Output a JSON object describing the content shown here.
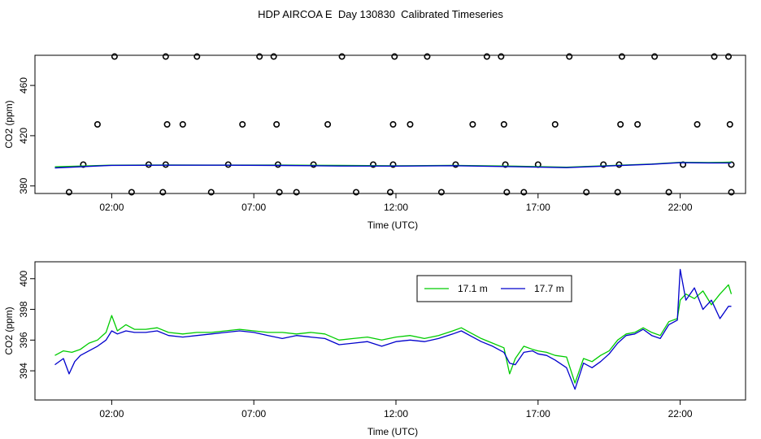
{
  "title": "HDP AIRCOA E  Day 130830  Calibrated Timeseries",
  "chart_data": [
    {
      "type": "scatter+line",
      "xlabel": "Time (UTC)",
      "ylabel": "CO2 (ppm)",
      "x_unit": "hours UTC",
      "xlim": [
        -0.7,
        24.3
      ],
      "ylim": [
        374,
        484
      ],
      "x_ticks": [
        {
          "value": 2,
          "label": "02:00"
        },
        {
          "value": 7,
          "label": "07:00"
        },
        {
          "value": 12,
          "label": "12:00"
        },
        {
          "value": 17,
          "label": "17:00"
        },
        {
          "value": 22,
          "label": "22:00"
        }
      ],
      "y_ticks": [
        {
          "value": 380,
          "label": "380"
        },
        {
          "value": 420,
          "label": "420"
        },
        {
          "value": 460,
          "label": "460"
        }
      ],
      "calibration_points": [
        [
          0.5,
          375
        ],
        [
          1.0,
          397
        ],
        [
          1.5,
          429
        ],
        [
          2.1,
          483
        ],
        [
          2.7,
          375
        ],
        [
          3.3,
          397
        ],
        [
          3.8,
          375
        ],
        [
          3.9,
          397
        ],
        [
          3.95,
          429
        ],
        [
          3.9,
          483
        ],
        [
          4.5,
          429
        ],
        [
          5.0,
          483
        ],
        [
          5.5,
          375
        ],
        [
          6.1,
          397
        ],
        [
          6.6,
          429
        ],
        [
          7.2,
          483
        ],
        [
          7.7,
          483
        ],
        [
          7.8,
          429
        ],
        [
          7.85,
          397
        ],
        [
          7.9,
          375
        ],
        [
          8.5,
          375
        ],
        [
          9.1,
          397
        ],
        [
          9.6,
          429
        ],
        [
          10.1,
          483
        ],
        [
          10.6,
          375
        ],
        [
          11.2,
          397
        ],
        [
          11.8,
          375
        ],
        [
          11.9,
          397
        ],
        [
          11.9,
          429
        ],
        [
          11.95,
          483
        ],
        [
          12.5,
          429
        ],
        [
          13.1,
          483
        ],
        [
          13.6,
          375
        ],
        [
          14.1,
          397
        ],
        [
          14.7,
          429
        ],
        [
          15.2,
          483
        ],
        [
          15.7,
          483
        ],
        [
          15.8,
          429
        ],
        [
          15.85,
          397
        ],
        [
          15.9,
          375
        ],
        [
          16.5,
          375
        ],
        [
          17.0,
          397
        ],
        [
          17.6,
          429
        ],
        [
          18.1,
          483
        ],
        [
          18.7,
          375
        ],
        [
          19.3,
          397
        ],
        [
          19.8,
          375
        ],
        [
          19.85,
          397
        ],
        [
          19.9,
          429
        ],
        [
          19.95,
          483
        ],
        [
          20.5,
          429
        ],
        [
          21.1,
          483
        ],
        [
          21.6,
          375
        ],
        [
          22.1,
          397
        ],
        [
          22.6,
          429
        ],
        [
          23.2,
          483
        ],
        [
          23.7,
          483
        ],
        [
          23.75,
          429
        ],
        [
          23.8,
          397
        ],
        [
          23.8,
          375
        ]
      ],
      "series": [
        {
          "name": "17.1 m",
          "color": "#00cc00",
          "x": [
            0,
            2,
            4,
            6,
            8,
            10,
            12,
            14,
            16,
            18,
            20,
            21,
            22,
            23,
            23.8
          ],
          "y": [
            395.2,
            396.5,
            396.7,
            396.6,
            396.6,
            396.3,
            396.0,
            396.4,
            395.8,
            394.9,
            396.6,
            397.4,
            398.8,
            398.6,
            398.9
          ]
        },
        {
          "name": "17.7 m",
          "color": "#0000cc",
          "x": [
            0,
            2,
            4,
            6,
            8,
            10,
            12,
            14,
            16,
            18,
            20,
            21,
            22,
            23,
            23.8
          ],
          "y": [
            394.4,
            396.4,
            396.5,
            396.5,
            396.3,
            395.9,
            395.8,
            396.1,
            395.4,
            394.6,
            396.4,
            397.2,
            398.5,
            398.3,
            398.3
          ]
        }
      ]
    },
    {
      "type": "line",
      "xlabel": "Time (UTC)",
      "ylabel": "CO2 (ppm)",
      "x_unit": "hours UTC",
      "xlim": [
        -0.7,
        24.3
      ],
      "ylim": [
        392.1,
        401.1
      ],
      "x_ticks": [
        {
          "value": 2,
          "label": "02:00"
        },
        {
          "value": 7,
          "label": "07:00"
        },
        {
          "value": 12,
          "label": "12:00"
        },
        {
          "value": 17,
          "label": "17:00"
        },
        {
          "value": 22,
          "label": "22:00"
        }
      ],
      "y_ticks": [
        {
          "value": 394,
          "label": "394"
        },
        {
          "value": 396,
          "label": "396"
        },
        {
          "value": 398,
          "label": "398"
        },
        {
          "value": 400,
          "label": "400"
        }
      ],
      "legend": "top-center-right",
      "series": [
        {
          "name": "17.1 m",
          "color": "#00cc00",
          "x": [
            0,
            0.3,
            0.6,
            0.9,
            1.2,
            1.5,
            1.8,
            2.0,
            2.2,
            2.5,
            2.8,
            3.2,
            3.6,
            4.0,
            4.5,
            5.0,
            5.5,
            6.0,
            6.5,
            7.0,
            7.5,
            8.0,
            8.5,
            9.0,
            9.5,
            10.0,
            10.5,
            11.0,
            11.5,
            12.0,
            12.5,
            13.0,
            13.5,
            14.0,
            14.3,
            14.6,
            15.0,
            15.4,
            15.8,
            16.0,
            16.2,
            16.5,
            16.8,
            17.0,
            17.3,
            17.6,
            18.0,
            18.3,
            18.6,
            18.9,
            19.2,
            19.5,
            19.8,
            20.1,
            20.4,
            20.7,
            21.0,
            21.3,
            21.6,
            21.9,
            22.0,
            22.2,
            22.5,
            22.8,
            23.1,
            23.4,
            23.7,
            23.8
          ],
          "y": [
            395.0,
            395.3,
            395.2,
            395.4,
            395.8,
            396.0,
            396.5,
            397.6,
            396.6,
            397.0,
            396.7,
            396.7,
            396.8,
            396.5,
            396.4,
            396.5,
            396.5,
            396.6,
            396.7,
            396.6,
            396.5,
            396.5,
            396.4,
            396.5,
            396.4,
            396.0,
            396.1,
            396.2,
            396.0,
            396.2,
            396.3,
            396.1,
            396.3,
            396.6,
            396.8,
            396.5,
            396.1,
            395.8,
            395.5,
            393.8,
            394.8,
            395.6,
            395.4,
            395.3,
            395.2,
            395.0,
            394.9,
            393.2,
            394.8,
            394.6,
            395.0,
            395.3,
            396.0,
            396.4,
            396.5,
            396.8,
            396.5,
            396.3,
            397.2,
            397.4,
            398.6,
            399.0,
            398.7,
            399.2,
            398.3,
            399.0,
            399.6,
            399.0
          ]
        },
        {
          "name": "17.7 m",
          "color": "#0000cc",
          "x": [
            0,
            0.3,
            0.5,
            0.7,
            0.9,
            1.2,
            1.5,
            1.8,
            2.0,
            2.2,
            2.5,
            2.8,
            3.2,
            3.6,
            4.0,
            4.5,
            5.0,
            5.5,
            6.0,
            6.5,
            7.0,
            7.5,
            8.0,
            8.5,
            9.0,
            9.5,
            10.0,
            10.5,
            11.0,
            11.5,
            12.0,
            12.5,
            13.0,
            13.5,
            14.0,
            14.3,
            14.6,
            15.0,
            15.4,
            15.8,
            16.0,
            16.2,
            16.5,
            16.8,
            17.0,
            17.3,
            17.6,
            18.0,
            18.3,
            18.6,
            18.9,
            19.2,
            19.5,
            19.8,
            20.1,
            20.4,
            20.7,
            21.0,
            21.3,
            21.6,
            21.9,
            22.0,
            22.2,
            22.5,
            22.8,
            23.1,
            23.4,
            23.7,
            23.8
          ],
          "y": [
            394.4,
            394.8,
            393.8,
            394.6,
            395.0,
            395.3,
            395.6,
            396.0,
            396.6,
            396.4,
            396.6,
            396.5,
            396.5,
            396.6,
            396.3,
            396.2,
            396.3,
            396.4,
            396.5,
            396.6,
            396.5,
            396.3,
            396.1,
            396.3,
            396.2,
            396.1,
            395.7,
            395.8,
            395.9,
            395.6,
            395.9,
            396.0,
            395.9,
            396.1,
            396.4,
            396.6,
            396.3,
            395.9,
            395.6,
            395.2,
            394.5,
            394.4,
            395.2,
            395.3,
            395.1,
            395.0,
            394.7,
            394.2,
            392.8,
            394.5,
            394.2,
            394.6,
            395.1,
            395.8,
            396.3,
            396.4,
            396.7,
            396.3,
            396.1,
            397.0,
            397.3,
            400.6,
            398.6,
            399.4,
            398.0,
            398.6,
            397.4,
            398.2,
            398.2
          ]
        }
      ]
    }
  ]
}
